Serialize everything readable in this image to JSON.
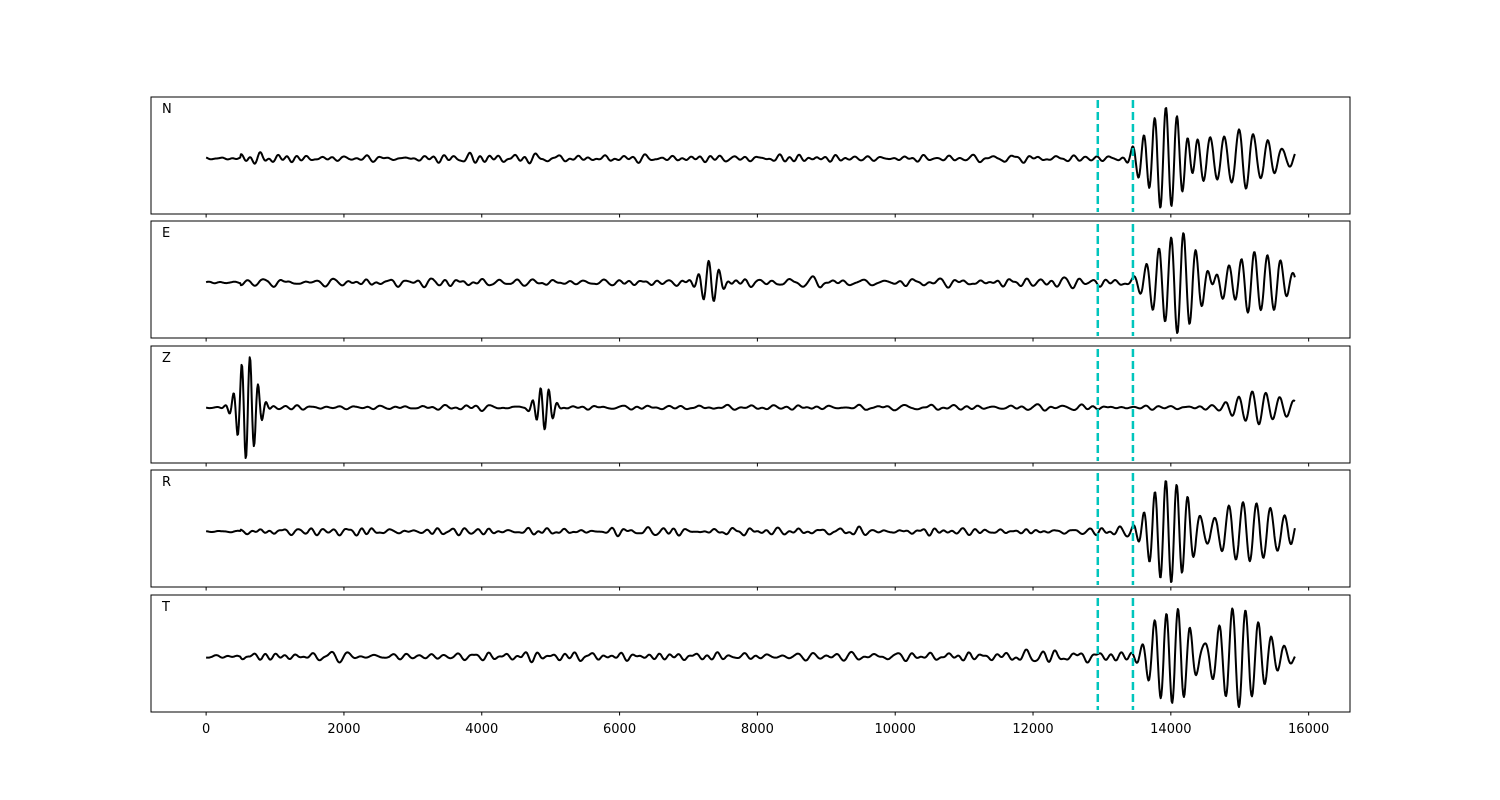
{
  "chart_data": {
    "type": "line",
    "x_axis": {
      "xlim": [
        -800,
        16600
      ],
      "ticks": [
        0,
        2000,
        4000,
        6000,
        8000,
        10000,
        12000,
        14000,
        16000
      ],
      "tick_labels": [
        "0",
        "2000",
        "4000",
        "6000",
        "8000",
        "10000",
        "12000",
        "14000",
        "16000"
      ]
    },
    "x_range": [
      0,
      15800
    ],
    "grid": false,
    "legend": "none",
    "trace_color": "#000000",
    "marker_color": "#00c5bd",
    "vertical_markers": [
      12940,
      13450
    ],
    "panels": [
      {
        "label": "N",
        "noise_amp": 0.16,
        "bursts": [
          {
            "center": 13950,
            "width": 380,
            "amp": 0.95,
            "period": 160
          },
          {
            "center": 15000,
            "width": 700,
            "amp": 0.5,
            "period": 210
          }
        ],
        "seed": 11
      },
      {
        "label": "E",
        "noise_amp": 0.18,
        "bursts": [
          {
            "center": 14100,
            "width": 450,
            "amp": 0.95,
            "period": 180
          },
          {
            "center": 15200,
            "width": 600,
            "amp": 0.55,
            "period": 190
          },
          {
            "center": 7300,
            "width": 200,
            "amp": 0.35,
            "period": 150
          }
        ],
        "seed": 23
      },
      {
        "label": "Z",
        "noise_amp": 0.1,
        "bursts": [
          {
            "center": 600,
            "width": 180,
            "amp": 0.95,
            "period": 120
          },
          {
            "center": 4900,
            "width": 150,
            "amp": 0.4,
            "period": 120
          },
          {
            "center": 15300,
            "width": 500,
            "amp": 0.3,
            "period": 200
          }
        ],
        "seed": 37
      },
      {
        "label": "R",
        "noise_amp": 0.16,
        "bursts": [
          {
            "center": 13950,
            "width": 350,
            "amp": 0.95,
            "period": 160
          },
          {
            "center": 15100,
            "width": 700,
            "amp": 0.5,
            "period": 200
          }
        ],
        "seed": 53
      },
      {
        "label": "T",
        "noise_amp": 0.2,
        "bursts": [
          {
            "center": 14000,
            "width": 400,
            "amp": 0.85,
            "period": 170
          },
          {
            "center": 15000,
            "width": 500,
            "amp": 0.85,
            "period": 190
          }
        ],
        "seed": 71
      }
    ]
  }
}
